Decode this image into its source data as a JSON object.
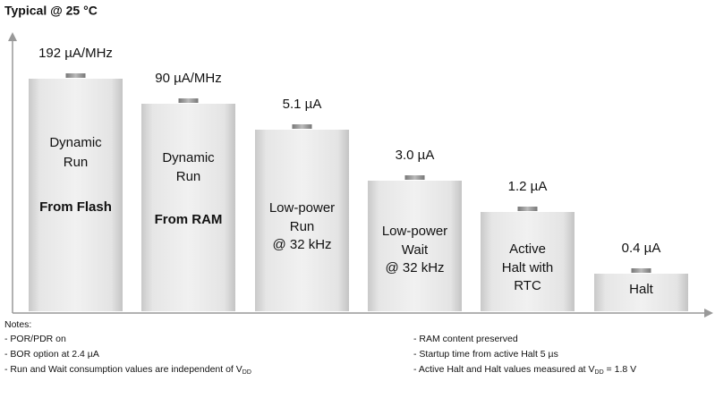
{
  "header": {
    "title": "Typical @ 25 °C"
  },
  "bars": [
    {
      "value_label": "192 µA/MHz",
      "lines": [
        "Dynamic",
        "Run"
      ],
      "bold": "From Flash"
    },
    {
      "value_label": "90 µA/MHz",
      "lines": [
        "Dynamic",
        "Run"
      ],
      "bold": "From RAM"
    },
    {
      "value_label": "5.1 µA",
      "lines": [
        "Low-power",
        "Run",
        "@ 32 kHz"
      ]
    },
    {
      "value_label": "3.0 µA",
      "lines": [
        "Low-power",
        "Wait",
        "@ 32 kHz"
      ]
    },
    {
      "value_label": "1.2 µA",
      "lines": [
        "Active",
        "Halt with",
        "RTC"
      ]
    },
    {
      "value_label": "0.4 µA",
      "lines": [
        "Halt"
      ]
    }
  ],
  "notes": {
    "heading": "Notes:",
    "left": [
      {
        "text": "- POR/PDR on"
      },
      {
        "text": "- BOR option at 2.4 µA"
      },
      {
        "text": "- Run and Wait consumption values are independent of V",
        "sub": "DD"
      }
    ],
    "right": [
      {
        "text": "- RAM content preserved"
      },
      {
        "text": "- Startup time from active Halt 5 µs"
      },
      {
        "text": "- Active Halt and Halt values measured at V",
        "sub": "DD",
        "after": " = 1.8 V"
      }
    ]
  }
}
